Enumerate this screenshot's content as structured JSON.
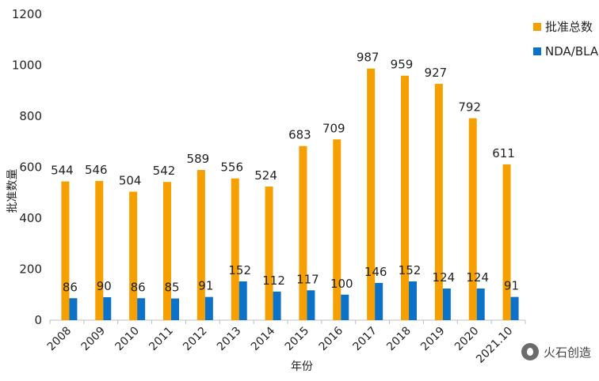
{
  "chart_data": {
    "type": "bar",
    "categories": [
      "2008",
      "2009",
      "2010",
      "2011",
      "2012",
      "2013",
      "2014",
      "2015",
      "2016",
      "2017",
      "2018",
      "2019",
      "2020",
      "2021.10"
    ],
    "series": [
      {
        "name": "批准总数",
        "color": "#F5A000",
        "values": [
          544,
          546,
          504,
          542,
          589,
          556,
          524,
          683,
          709,
          987,
          959,
          927,
          792,
          611
        ]
      },
      {
        "name": "NDA/BLA",
        "color": "#0B72C7",
        "values": [
          86,
          90,
          86,
          85,
          91,
          152,
          112,
          117,
          100,
          146,
          152,
          124,
          124,
          91
        ]
      }
    ],
    "title": "",
    "xlabel": "年份",
    "ylabel": "批准数量",
    "ylim": [
      0,
      1200
    ],
    "yticks": [
      0,
      200,
      400,
      600,
      800,
      1000,
      1200
    ],
    "grid": false,
    "legend": "right"
  },
  "watermark": {
    "text": "火石创造",
    "icon": "fire-icon"
  }
}
